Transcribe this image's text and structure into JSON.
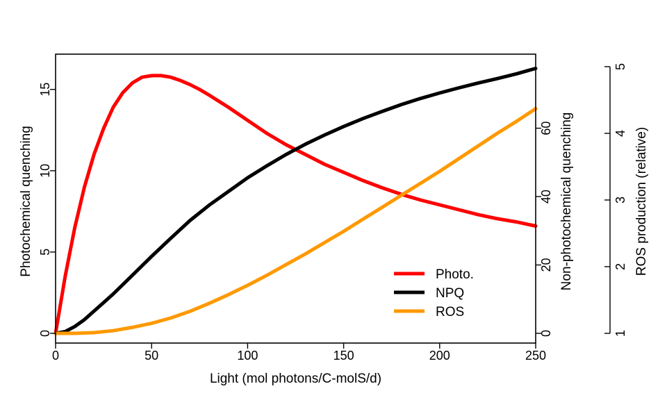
{
  "chart_data": {
    "type": "line",
    "title": "",
    "xlabel": "Light (mol photons/C-molS/d)",
    "xlim": [
      0,
      250
    ],
    "xticks": [
      0,
      50,
      100,
      150,
      200,
      250
    ],
    "axes": {
      "left": {
        "label": "Photochemical quenching",
        "lim": [
          0,
          16.4
        ],
        "ticks": [
          0,
          5,
          10,
          15
        ]
      },
      "right1": {
        "label": "Non-photochemical quenching",
        "lim": [
          0,
          78
        ],
        "ticks": [
          0,
          20,
          40,
          60
        ]
      },
      "right2": {
        "label": "ROS production (relative)",
        "lim": [
          1,
          5
        ],
        "ticks": [
          1,
          2,
          3,
          4,
          5
        ]
      }
    },
    "grid": false,
    "legend": {
      "position": "bottom-right"
    },
    "series": [
      {
        "name": "Photo.",
        "axis": "left",
        "color": "#ff0000",
        "x": [
          0,
          5,
          10,
          15,
          20,
          25,
          30,
          35,
          40,
          45,
          50,
          55,
          60,
          65,
          70,
          75,
          80,
          90,
          100,
          110,
          120,
          130,
          140,
          150,
          160,
          170,
          180,
          190,
          200,
          210,
          220,
          230,
          240,
          250
        ],
        "y": [
          0,
          3.5,
          6.5,
          9.0,
          11.0,
          12.6,
          13.9,
          14.8,
          15.4,
          15.75,
          15.85,
          15.85,
          15.75,
          15.55,
          15.3,
          15.0,
          14.65,
          13.9,
          13.1,
          12.3,
          11.6,
          11.0,
          10.4,
          9.9,
          9.4,
          8.95,
          8.55,
          8.2,
          7.9,
          7.6,
          7.3,
          7.05,
          6.85,
          6.6
        ]
      },
      {
        "name": "NPQ",
        "axis": "right1",
        "color": "#000000",
        "x": [
          0,
          5,
          10,
          15,
          20,
          25,
          30,
          40,
          50,
          60,
          70,
          80,
          90,
          100,
          110,
          120,
          130,
          140,
          150,
          160,
          170,
          180,
          190,
          200,
          210,
          220,
          230,
          240,
          250
        ],
        "y": [
          0,
          0.5,
          2.0,
          4.0,
          6.5,
          9.0,
          11.5,
          17.0,
          22.5,
          27.8,
          33.0,
          37.5,
          41.5,
          45.5,
          49.0,
          52.3,
          55.3,
          58.0,
          60.5,
          62.8,
          64.9,
          66.9,
          68.7,
          70.3,
          71.8,
          73.2,
          74.5,
          75.9,
          77.5
        ]
      },
      {
        "name": "ROS",
        "axis": "right2",
        "color": "#ff9900",
        "x": [
          0,
          10,
          20,
          30,
          40,
          50,
          60,
          70,
          80,
          90,
          100,
          110,
          120,
          130,
          140,
          150,
          160,
          170,
          180,
          190,
          200,
          210,
          220,
          230,
          240,
          250
        ],
        "y": [
          1.0,
          1.0,
          1.01,
          1.04,
          1.09,
          1.15,
          1.23,
          1.33,
          1.45,
          1.58,
          1.72,
          1.87,
          2.03,
          2.19,
          2.36,
          2.53,
          2.71,
          2.89,
          3.07,
          3.25,
          3.43,
          3.62,
          3.81,
          4.0,
          4.18,
          4.37
        ]
      }
    ]
  }
}
